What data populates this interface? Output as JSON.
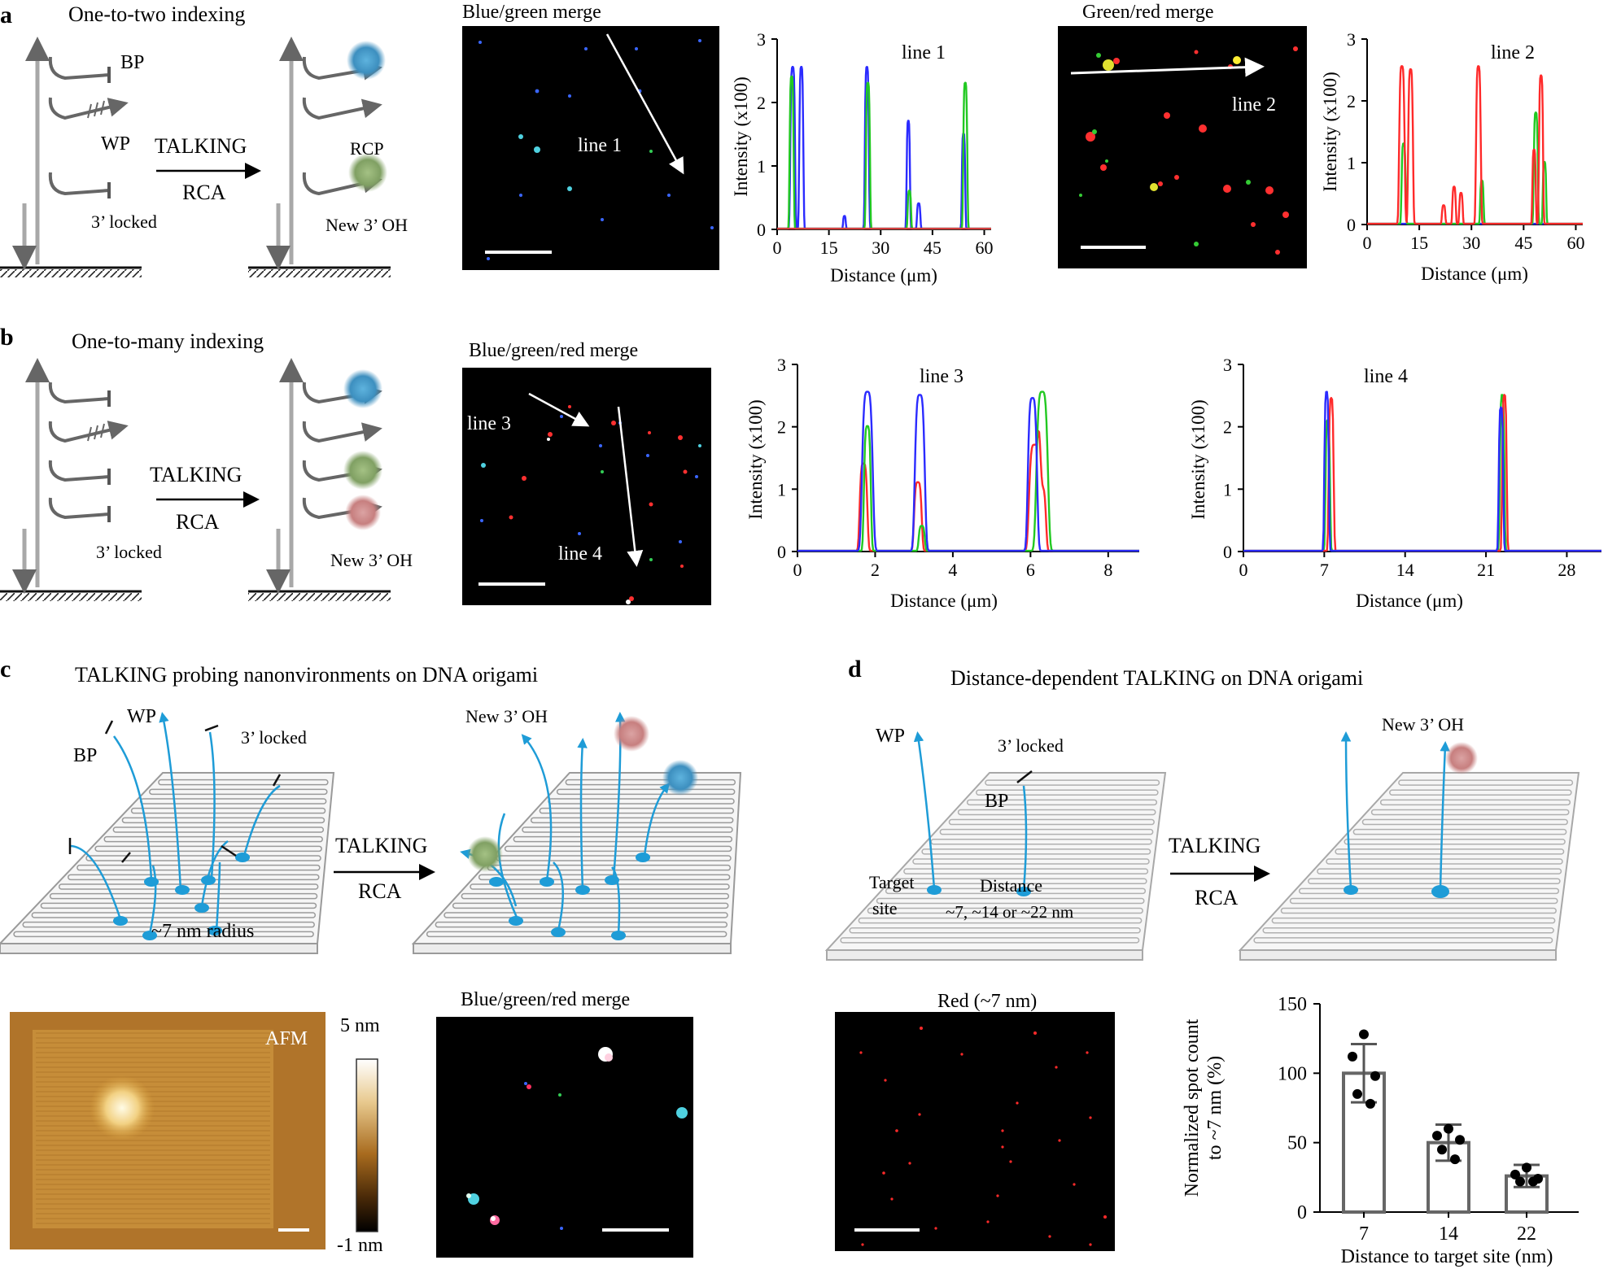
{
  "panels": {
    "a": {
      "letter": "a",
      "title": "One-to-two indexing",
      "schematic": {
        "bp": "BP",
        "wp": "WP",
        "locked": "3’ locked",
        "talking": "TALKING",
        "rca": "RCA",
        "rcp": "RCP",
        "new_oh": "New 3’ OH"
      },
      "micrograph_1": {
        "title": "Blue/green merge",
        "line_label": "line 1"
      },
      "micrograph_2": {
        "title": "Green/red merge",
        "line_label": "line 2"
      }
    },
    "b": {
      "letter": "b",
      "title": "One-to-many indexing",
      "schematic": {
        "locked": "3’ locked",
        "talking": "TALKING",
        "rca": "RCA",
        "new_oh": "New 3’ OH"
      },
      "micrograph": {
        "title": "Blue/green/red merge",
        "line3": "line 3",
        "line4": "line 4"
      }
    },
    "c": {
      "letter": "c",
      "title": "TALKING probing nanonvironments on DNA origami",
      "schematic": {
        "wp": "WP",
        "bp": "BP",
        "locked": "3’ locked",
        "radius": "~7 nm radius",
        "new_oh": "New 3’ OH",
        "talking": "TALKING",
        "rca": "RCA"
      },
      "afm": {
        "label": "AFM",
        "scale_max": "5 nm",
        "scale_min": "-1 nm"
      },
      "micrograph": {
        "title": "Blue/green/red merge"
      }
    },
    "d": {
      "letter": "d",
      "title": "Distance-dependent TALKING on DNA origami",
      "schematic": {
        "wp": "WP",
        "locked": "3’ locked",
        "bp": "BP",
        "target": "Target",
        "site": "site",
        "distance": "Distance",
        "distance_values": "~7, ~14 or ~22 nm",
        "new_oh": "New 3’ OH",
        "talking": "TALKING",
        "rca": "RCA"
      },
      "micrograph": {
        "title": "Red (~7 nm)"
      }
    }
  },
  "chart_data": [
    {
      "id": "line1",
      "type": "line",
      "title": "line 1",
      "xlabel": "Distance (μm)",
      "ylabel": "Intensity (x100)",
      "xlim": [
        0,
        62
      ],
      "ylim": [
        0,
        3
      ],
      "xticks": [
        0,
        15,
        30,
        45,
        60
      ],
      "yticks": [
        0,
        1,
        2,
        3
      ],
      "series": [
        {
          "name": "blue",
          "color": "#2b2bff",
          "peaks": [
            [
              4.5,
              2.55,
              0.7
            ],
            [
              7,
              2.55,
              0.6
            ],
            [
              26,
              2.55,
              0.6
            ],
            [
              38,
              1.7,
              0.5
            ],
            [
              41,
              0.4,
              0.5
            ],
            [
              54,
              1.5,
              0.5
            ],
            [
              19.5,
              0.2,
              0.4
            ]
          ]
        },
        {
          "name": "green",
          "color": "#22c922",
          "peaks": [
            [
              4.2,
              2.4,
              0.6
            ],
            [
              26.3,
              2.3,
              0.6
            ],
            [
              38.3,
              0.6,
              0.5
            ],
            [
              54.5,
              2.3,
              0.6
            ]
          ]
        },
        {
          "name": "red",
          "color": "#d64040",
          "peaks": []
        }
      ]
    },
    {
      "id": "line2",
      "type": "line",
      "title": "line 2",
      "xlabel": "Distance (μm)",
      "ylabel": "Intensity (x100)",
      "xlim": [
        0,
        62
      ],
      "ylim": [
        0,
        3
      ],
      "xticks": [
        0,
        15,
        30,
        45,
        60
      ],
      "yticks": [
        0,
        1,
        2,
        3
      ],
      "series": [
        {
          "name": "blue",
          "color": "#2b2bff",
          "peaks": []
        },
        {
          "name": "green",
          "color": "#22c922",
          "peaks": [
            [
              10.5,
              1.3,
              0.6
            ],
            [
              33,
              0.7,
              0.5
            ],
            [
              48.5,
              1.8,
              0.6
            ],
            [
              51,
              1.0,
              0.5
            ]
          ]
        },
        {
          "name": "red",
          "color": "#ff2a2a",
          "peaks": [
            [
              10,
              2.55,
              0.8
            ],
            [
              12.5,
              2.5,
              0.7
            ],
            [
              22,
              0.3,
              0.5
            ],
            [
              25,
              0.6,
              0.5
            ],
            [
              27,
              0.5,
              0.5
            ],
            [
              32,
              2.55,
              0.7
            ],
            [
              48,
              1.2,
              0.5
            ],
            [
              50,
              2.4,
              0.6
            ]
          ]
        }
      ]
    },
    {
      "id": "line3",
      "type": "line",
      "title": "line 3",
      "xlabel": "Distance (μm)",
      "ylabel": "Intensity (x100)",
      "xlim": [
        0,
        8.8
      ],
      "ylim": [
        0,
        3
      ],
      "xticks": [
        0,
        2,
        4,
        6,
        8
      ],
      "yticks": [
        0,
        1,
        2,
        3
      ],
      "series": [
        {
          "name": "red",
          "color": "#ff2a2a",
          "peaks": [
            [
              1.7,
              1.4,
              0.1
            ],
            [
              3.1,
              1.1,
              0.1
            ],
            [
              6.1,
              1.7,
              0.14
            ],
            [
              6.3,
              1.0,
              0.1
            ]
          ]
        },
        {
          "name": "green",
          "color": "#22c922",
          "peaks": [
            [
              1.8,
              2.0,
              0.09
            ],
            [
              3.2,
              0.4,
              0.08
            ],
            [
              6.3,
              2.55,
              0.15
            ]
          ]
        },
        {
          "name": "blue",
          "color": "#2b2bff",
          "peaks": [
            [
              1.8,
              2.55,
              0.14
            ],
            [
              3.15,
              2.5,
              0.13
            ],
            [
              6.05,
              2.45,
              0.12
            ]
          ]
        }
      ]
    },
    {
      "id": "line4",
      "type": "line",
      "title": "line 4",
      "xlabel": "Distance (μm)",
      "ylabel": "Intensity (x100)",
      "xlim": [
        0,
        31
      ],
      "ylim": [
        0,
        3
      ],
      "xticks": [
        0,
        7,
        14,
        21,
        28
      ],
      "yticks": [
        0,
        1,
        2,
        3
      ],
      "series": [
        {
          "name": "green",
          "color": "#22c922",
          "peaks": [
            [
              7.3,
              2.1,
              0.2
            ],
            [
              22.4,
              2.5,
              0.2
            ]
          ]
        },
        {
          "name": "red",
          "color": "#ff2a2a",
          "peaks": [
            [
              7.6,
              2.45,
              0.22
            ],
            [
              22.6,
              2.5,
              0.2
            ]
          ]
        },
        {
          "name": "blue",
          "color": "#2b2bff",
          "peaks": [
            [
              7.2,
              2.55,
              0.2
            ],
            [
              22.3,
              2.3,
              0.2
            ]
          ]
        }
      ]
    },
    {
      "id": "bar_d",
      "type": "bar",
      "xlabel": "Distance to target site (nm)",
      "ylabel": "Normalized spot count to ~7 nm (%)",
      "ylabel_lines": [
        "Normalized spot count",
        "to ~7 nm (%)"
      ],
      "categories": [
        "7",
        "14",
        "22"
      ],
      "values": [
        100,
        50,
        26
      ],
      "errors": [
        21,
        13,
        8
      ],
      "points": [
        [
          128,
          112,
          98,
          85,
          78
        ],
        [
          60,
          55,
          52,
          45,
          38
        ],
        [
          32,
          27,
          24,
          22,
          22
        ]
      ],
      "ylim": [
        0,
        150
      ],
      "yticks": [
        0,
        50,
        100,
        150
      ]
    }
  ]
}
